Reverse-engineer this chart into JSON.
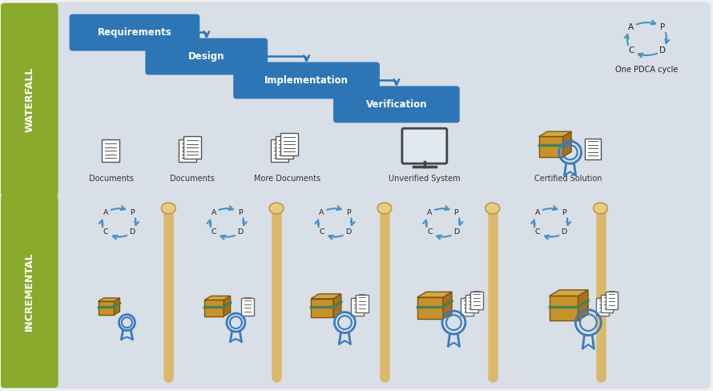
{
  "bg_outer": "#f0f0f0",
  "panel_bg": "#d8dfe6",
  "label_bg": "#8aaa2e",
  "label_text_color": "#ffffff",
  "box_color": "#2e75b6",
  "box_text_color": "#ffffff",
  "pdca_color": "#4a90c4",
  "waterfall_label": "WATERFALL",
  "incremental_label": "INCREMENTAL",
  "waterfall_boxes": [
    "Requirements",
    "Design",
    "Implementation",
    "Verification"
  ],
  "waterfall_icons": [
    "Documents",
    "Documents",
    "More Documents",
    "Unverified System",
    "Certified Solution"
  ],
  "pole_color": "#dbb96a",
  "pole_top_color": "#e8cc80",
  "doc_color": "#666666",
  "box3d_front": "#c8922a",
  "box3d_top": "#d4a845",
  "box3d_side": "#a87020",
  "box3d_stripe": "#4a8050",
  "badge_color": "#3a7abf",
  "monitor_color": "#444444",
  "monitor_screen": "#e0e8f0"
}
